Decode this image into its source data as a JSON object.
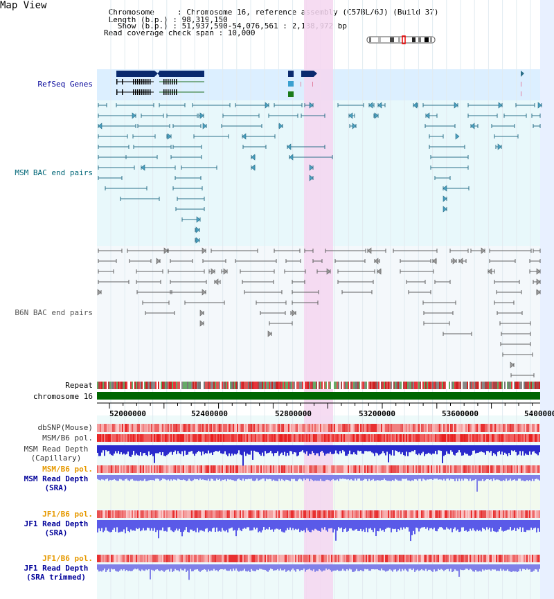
{
  "page": {
    "title": "Map View"
  },
  "header": {
    "chromosome": " Chromosome     : Chromosome 16, reference assembly (C57BL/6J) (Build 37)",
    "length": " Length (b.p.) : 98,319,150",
    "show": "   Show (b.p.) : 51,937,590-54,076,561 : 2,138,972 bp",
    "coverage": "Read coverage check span : 10,000"
  },
  "tracks": {
    "refseq": "RefSeq Genes",
    "msm_bac": "MSM BAC end pairs",
    "b6n_bac": "B6N BAC end pairs",
    "repeat": "Repeat",
    "chromosome": "chromosome 16",
    "dbsnp": "dbSNP(Mouse)",
    "msm_b6_pol_1": "MSM/B6 pol.",
    "msm_read_depth_cap_1": "MSM Read Depth",
    "msm_read_depth_cap_2": "(Capillary)",
    "msm_b6_pol_2": "MSM/B6 pol.",
    "msm_read_depth_sra_1": "MSM Read Depth",
    "msm_read_depth_sra_2": "(SRA)",
    "jf1_b6_pol_1": "JF1/B6 pol.",
    "jf1_read_depth_sra_1": "JF1 Read Depth",
    "jf1_read_depth_sra_2": "(SRA)",
    "jf1_b6_pol_2": "JF1/B6 pol.",
    "jf1_read_depth_trim_1": "JF1 Read Depth",
    "jf1_read_depth_trim_2": "(SRA trimmed)"
  },
  "axis": {
    "ticks": [
      "52000000",
      "52400000",
      "52800000",
      "53200000",
      "53600000",
      "54000000"
    ]
  },
  "colors": {
    "refseq_band": "#dcefff",
    "msm_band": "#e8f8fb",
    "b6n_band": "#f4f8fb",
    "highlight": "#f5d6f0",
    "gene_fill": "#0a2a6e",
    "msm_line": "#2a6f88",
    "b6n_line": "#606060",
    "chromosome_bar": "#006600",
    "pol_red": "#e8333a",
    "depth_blue": "#2a2acc",
    "depth_lightblue": "#8080e8",
    "label_blue": "#000099",
    "label_orange": "#e69900"
  }
}
